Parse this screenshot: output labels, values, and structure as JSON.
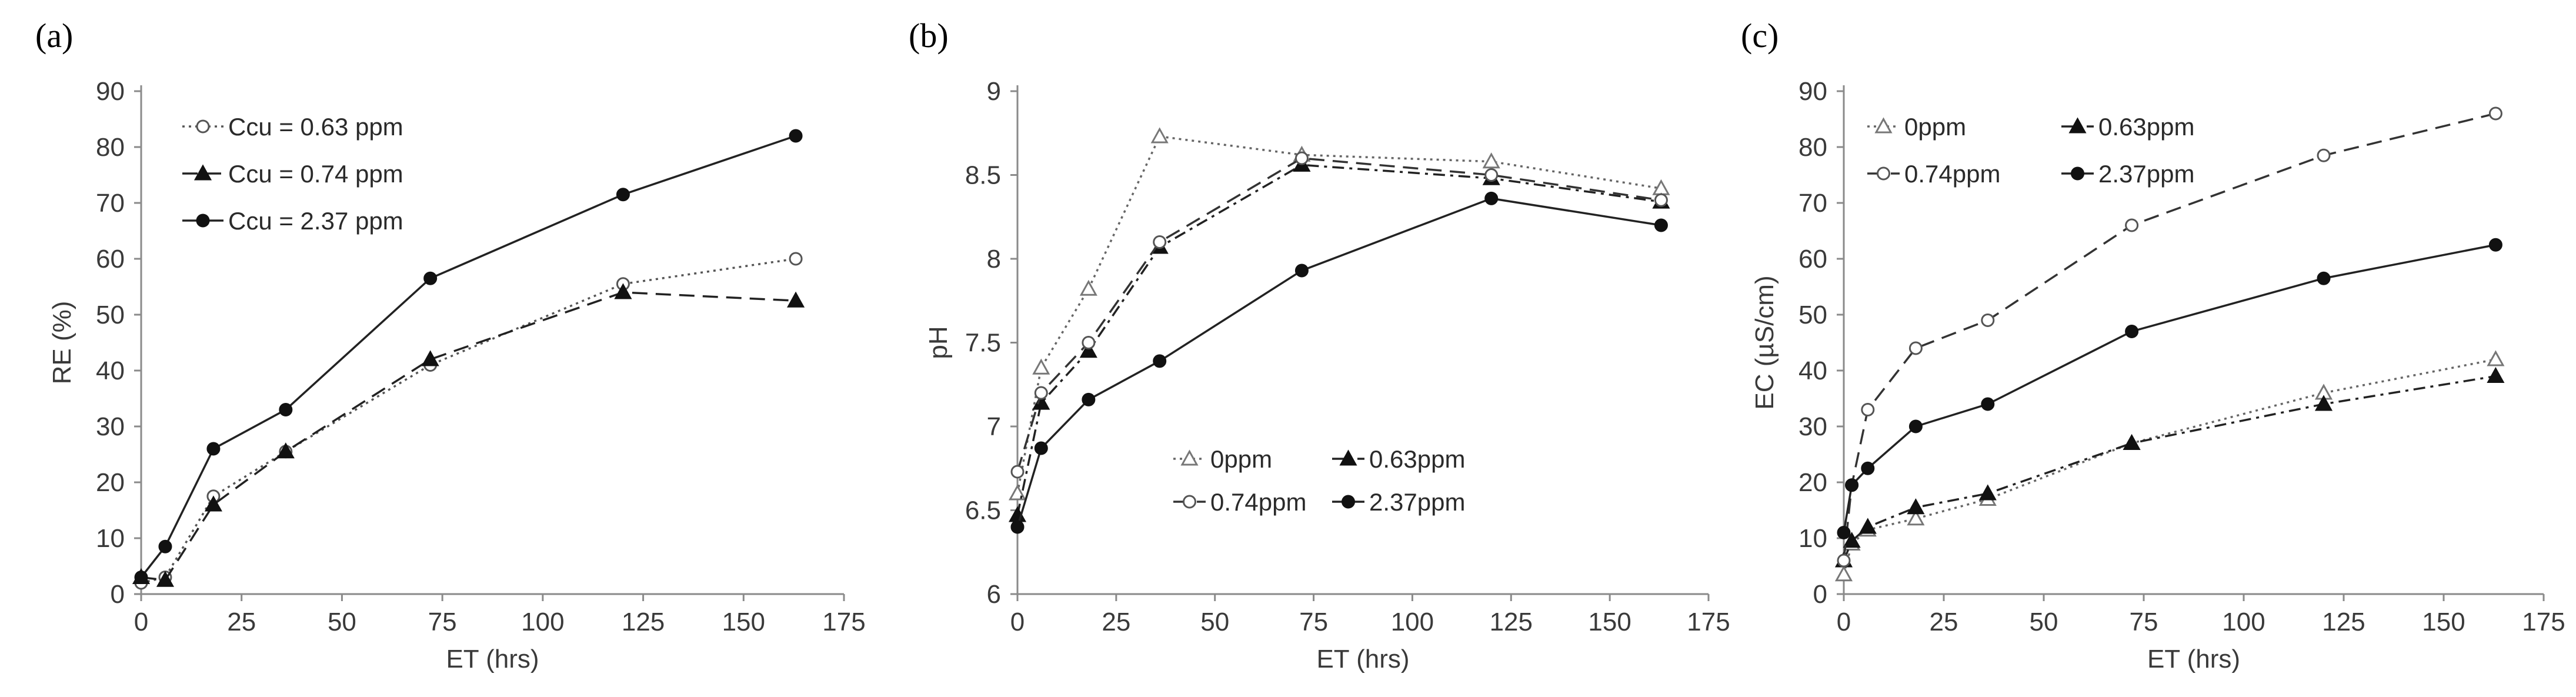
{
  "chart_data": [
    {
      "panel": "(a)",
      "type": "line",
      "xlabel": "ET (hrs)",
      "ylabel": "RE (%)",
      "xlim": [
        0,
        175
      ],
      "ylim": [
        0,
        90
      ],
      "xticks": [
        0,
        25,
        50,
        75,
        100,
        125,
        150,
        175
      ],
      "yticks": [
        0,
        10,
        20,
        30,
        40,
        50,
        60,
        70,
        80,
        90
      ],
      "legend": "top-left",
      "series": [
        {
          "name": "Ccu = 0.63 ppm",
          "marker": "open-circle",
          "style": "dotted",
          "color": "#555555",
          "x": [
            0,
            6,
            18,
            36,
            72,
            120,
            163
          ],
          "y": [
            2,
            3,
            17.5,
            25.5,
            41,
            55.5,
            60
          ]
        },
        {
          "name": "Ccu = 0.74 ppm",
          "marker": "filled-triangle",
          "style": "dashed",
          "color": "#222222",
          "x": [
            0,
            6,
            18,
            36,
            72,
            120,
            163
          ],
          "y": [
            3,
            2.5,
            16,
            25.5,
            42,
            54,
            52.5
          ]
        },
        {
          "name": "Ccu = 2.37 ppm",
          "marker": "filled-circle",
          "style": "solid",
          "color": "#222222",
          "x": [
            0,
            6,
            18,
            36,
            72,
            120,
            163
          ],
          "y": [
            3,
            8.5,
            26,
            33,
            56.5,
            71.5,
            82
          ]
        }
      ]
    },
    {
      "panel": "(b)",
      "type": "line",
      "xlabel": "ET (hrs)",
      "ylabel": "pH",
      "xlim": [
        0,
        175
      ],
      "ylim": [
        6,
        9
      ],
      "xticks": [
        0,
        25,
        50,
        75,
        100,
        125,
        150,
        175
      ],
      "yticks": [
        "6",
        "6.5",
        "7",
        "7.5",
        "8",
        "8.5",
        "9"
      ],
      "legend": "center",
      "series": [
        {
          "name": "0ppm",
          "marker": "open-triangle",
          "style": "dotted",
          "color": "#666666",
          "x": [
            0,
            6,
            18,
            36,
            72,
            120,
            163
          ],
          "y": [
            6.6,
            7.35,
            7.82,
            8.73,
            8.62,
            8.58,
            8.42
          ]
        },
        {
          "name": "0.63ppm",
          "marker": "filled-triangle",
          "style": "dashdot",
          "color": "#222222",
          "x": [
            0,
            6,
            18,
            36,
            72,
            120,
            163
          ],
          "y": [
            6.47,
            7.14,
            7.45,
            8.07,
            8.56,
            8.48,
            8.34
          ]
        },
        {
          "name": "0.74ppm",
          "marker": "open-circle",
          "style": "dashed",
          "color": "#333333",
          "x": [
            0,
            6,
            18,
            36,
            72,
            120,
            163
          ],
          "y": [
            6.73,
            7.2,
            7.5,
            8.1,
            8.6,
            8.5,
            8.35
          ]
        },
        {
          "name": "2.37ppm",
          "marker": "filled-circle",
          "style": "solid",
          "color": "#222222",
          "x": [
            0,
            6,
            18,
            36,
            72,
            120,
            163
          ],
          "y": [
            6.4,
            6.87,
            7.16,
            7.39,
            7.93,
            8.36,
            8.2
          ]
        }
      ]
    },
    {
      "panel": "(c)",
      "type": "line",
      "xlabel": "ET (hrs)",
      "ylabel": "EC (µS/cm)",
      "xlim": [
        0,
        175
      ],
      "ylim": [
        0,
        90
      ],
      "xticks": [
        0,
        25,
        50,
        75,
        100,
        125,
        150,
        175
      ],
      "yticks": [
        0,
        10,
        20,
        30,
        40,
        50,
        60,
        70,
        80,
        90
      ],
      "legend": "top-left",
      "series": [
        {
          "name": "0ppm",
          "marker": "open-triangle",
          "style": "dotted",
          "color": "#666666",
          "x": [
            0,
            2,
            6,
            18,
            36,
            72,
            120,
            163
          ],
          "y": [
            3.5,
            9,
            11.5,
            13.5,
            17,
            27,
            36,
            42
          ]
        },
        {
          "name": "0.63ppm",
          "marker": "filled-triangle",
          "style": "dashdot",
          "color": "#222222",
          "x": [
            0,
            2,
            6,
            18,
            36,
            72,
            120,
            163
          ],
          "y": [
            6,
            9.5,
            12,
            15.5,
            18,
            27,
            34,
            39
          ]
        },
        {
          "name": "0.74ppm",
          "marker": "open-circle",
          "style": "dashed",
          "color": "#333333",
          "x": [
            0,
            2,
            6,
            18,
            36,
            72,
            120,
            163
          ],
          "y": [
            6,
            19.5,
            33,
            44,
            49,
            66,
            78.5,
            86
          ]
        },
        {
          "name": "2.37ppm",
          "marker": "filled-circle",
          "style": "solid",
          "color": "#222222",
          "x": [
            0,
            2,
            6,
            18,
            36,
            72,
            120,
            163
          ],
          "y": [
            11,
            19.5,
            22.5,
            30,
            34,
            47,
            56.5,
            62.5
          ]
        }
      ]
    }
  ]
}
